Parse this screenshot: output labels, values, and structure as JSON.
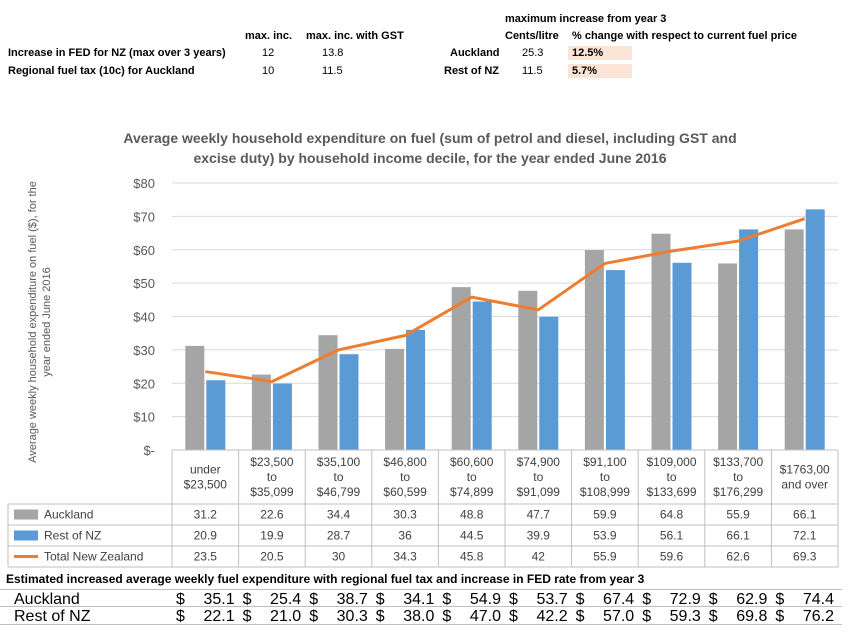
{
  "top_table": {
    "col_max_inc": "max. inc.",
    "col_max_inc_gst": "max. inc. with GST",
    "rows": [
      {
        "label": "Increase  in FED for NZ (max over 3 years)",
        "max_inc": "12",
        "max_inc_gst": "13.8"
      },
      {
        "label": "Regional fuel tax (10c) for Auckland",
        "max_inc": "10",
        "max_inc_gst": "11.5"
      }
    ],
    "right_header": "maximum increase from year 3",
    "col_cents": "Cents/litre",
    "col_pct": "% change with respect to current fuel price",
    "right_rows": [
      {
        "label": "Auckland",
        "cents": "25.3",
        "pct": "12.5%"
      },
      {
        "label": "Rest of NZ",
        "cents": "11.5",
        "pct": "5.7%"
      }
    ]
  },
  "chart_data": {
    "type": "bar",
    "title_line1": "Average weekly household expenditure on fuel (sum of petrol and diesel, including GST and",
    "title_line2": "excise duty) by household income decile, for the year ended June 2016",
    "ylabel_line1": "Average weekly household expenditure on fuel ($), for the",
    "ylabel_line2": "year ended June 2016",
    "ylim": [
      0,
      80
    ],
    "yticks": [
      {
        "value": 0,
        "label": "$-"
      },
      {
        "value": 10,
        "label": "$10"
      },
      {
        "value": 20,
        "label": "$20"
      },
      {
        "value": 30,
        "label": "$30"
      },
      {
        "value": 40,
        "label": "$40"
      },
      {
        "value": 50,
        "label": "$50"
      },
      {
        "value": 60,
        "label": "$60"
      },
      {
        "value": 70,
        "label": "$70"
      },
      {
        "value": 80,
        "label": "$80"
      }
    ],
    "grid": true,
    "categories": [
      [
        "under",
        "$23,500"
      ],
      [
        "$23,500",
        "to",
        "$35,099"
      ],
      [
        "$35,100",
        "to",
        "$46,799"
      ],
      [
        "$46,800",
        "to",
        "$60,599"
      ],
      [
        "$60,600",
        "to",
        "$74,899"
      ],
      [
        "$74,900",
        "to",
        "$91,099"
      ],
      [
        "$91,100",
        "to",
        "$108,999"
      ],
      [
        "$109,000",
        "to",
        "$133,699"
      ],
      [
        "$133,700",
        "to",
        "$176,299"
      ],
      [
        "$1763,00",
        "and over"
      ]
    ],
    "series": [
      {
        "name": "Auckland",
        "type": "bar",
        "color": "#a5a5a5",
        "values": [
          31.2,
          22.6,
          34.4,
          30.3,
          48.8,
          47.7,
          59.9,
          64.8,
          55.9,
          66.1
        ],
        "labels": [
          "31.2",
          "22.6",
          "34.4",
          "30.3",
          "48.8",
          "47.7",
          "59.9",
          "64.8",
          "55.9",
          "66.1"
        ]
      },
      {
        "name": "Rest of NZ",
        "type": "bar",
        "color": "#5b9bd5",
        "values": [
          20.9,
          19.9,
          28.7,
          36,
          44.5,
          39.9,
          53.9,
          56.1,
          66.1,
          72.1
        ],
        "labels": [
          "20.9",
          "19.9",
          "28.7",
          "36",
          "44.5",
          "39.9",
          "53.9",
          "56.1",
          "66.1",
          "72.1"
        ]
      },
      {
        "name": "Total New Zealand",
        "type": "line",
        "color": "#ed7d31",
        "values": [
          23.5,
          20.5,
          30,
          34.3,
          45.8,
          42,
          55.9,
          59.6,
          62.6,
          69.3
        ],
        "labels": [
          "23.5",
          "20.5",
          "30",
          "34.3",
          "45.8",
          "42",
          "55.9",
          "59.6",
          "62.6",
          "69.3"
        ]
      }
    ]
  },
  "bottom_table": {
    "title": "Estimated increased average weekly fuel expenditure with regional fuel tax and increase in FED rate from year 3",
    "currency": "$",
    "rows": [
      {
        "label": "Auckland",
        "values": [
          "35.1",
          "25.4",
          "38.7",
          "34.1",
          "54.9",
          "53.7",
          "67.4",
          "72.9",
          "62.9",
          "74.4"
        ]
      },
      {
        "label": "Rest of NZ",
        "values": [
          "22.1",
          "21.0",
          "30.3",
          "38.0",
          "47.0",
          "42.2",
          "57.0",
          "59.3",
          "69.8",
          "76.2"
        ]
      }
    ]
  }
}
